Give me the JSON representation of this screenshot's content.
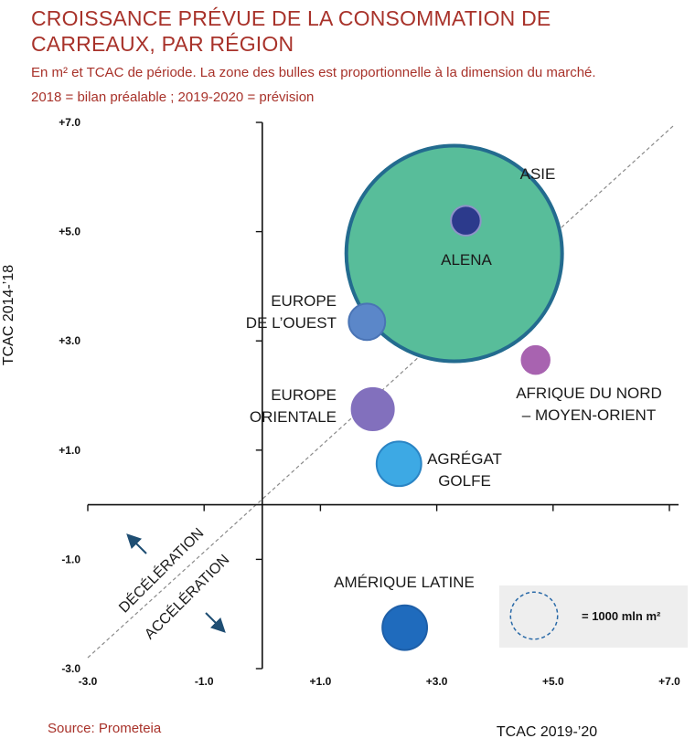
{
  "title": "CROISSANCE PRÉVUE DE LA CONSOMMATION DE CARREAUX, PAR RÉGION",
  "subtitle_line1": "En m² et TCAC de période. La zone des bulles est proportionnelle à la dimension du marché.",
  "subtitle_line2": "2018 = bilan préalable ; 2019-2020 = prévision",
  "source": "Source: Prometeia",
  "chart_data": {
    "type": "scatter",
    "xlabel": "TCAC 2019-’20",
    "ylabel": "TCAC 2014-’18",
    "xlim": [
      -3.0,
      7.0
    ],
    "ylim": [
      -3.0,
      7.0
    ],
    "x_tick_labels": [
      "-3.0",
      "-1.0",
      "+1.0",
      "+3.0",
      "+5.0",
      "+7.0"
    ],
    "y_tick_labels": [
      "+7.0",
      "+5.0",
      "+3.0",
      "+1.0",
      "-1.0",
      "-3.0"
    ],
    "diagonal_line": true,
    "points": [
      {
        "name": "ASIE",
        "label_lines": [
          "ASIE"
        ],
        "x": 3.3,
        "y": 4.6,
        "size_mln_m2": 21000,
        "color": "#58bd9a",
        "stroke": "#236b8f"
      },
      {
        "name": "ALENA",
        "label_lines": [
          "ALENA"
        ],
        "x": 3.5,
        "y": 5.2,
        "size_mln_m2": 400,
        "color": "#2c3a8c",
        "stroke": "#8e93c8"
      },
      {
        "name": "EUROPE DE L’OUEST",
        "label_lines": [
          "EUROPE",
          "DE L’OUEST"
        ],
        "x": 1.8,
        "y": 3.35,
        "size_mln_m2": 600,
        "color": "#5b87c9",
        "stroke": "#4a74b5"
      },
      {
        "name": "AFRIQUE DU NORD – MOYEN-ORIENT",
        "label_lines": [
          "AFRIQUE DU NORD",
          "– MOYEN-ORIENT"
        ],
        "x": 4.7,
        "y": 2.65,
        "size_mln_m2": 350,
        "color": "#a863b0",
        "stroke": "#a863b0"
      },
      {
        "name": "EUROPE ORIENTALE",
        "label_lines": [
          "EUROPE",
          "ORIENTALE"
        ],
        "x": 1.9,
        "y": 1.75,
        "size_mln_m2": 800,
        "color": "#8270bd",
        "stroke": "#8270bd"
      },
      {
        "name": "AGRÉGAT GOLFE",
        "label_lines": [
          "AGRÉGAT",
          "GOLFE"
        ],
        "x": 2.35,
        "y": 0.75,
        "size_mln_m2": 900,
        "color": "#3da9e4",
        "stroke": "#2a84c4"
      },
      {
        "name": "AMÉRIQUE LATINE",
        "label_lines": [
          "AMÉRIQUE LATINE"
        ],
        "x": 2.45,
        "y": -2.25,
        "size_mln_m2": 900,
        "color": "#1f6bbd",
        "stroke": "#1e5fa8"
      }
    ],
    "annotations": [
      "DÉCÉLÉRATION",
      "ACCÉLÉRATION"
    ],
    "legend": {
      "label": "= 1000 mln m²",
      "placement": "bottom-right"
    }
  }
}
